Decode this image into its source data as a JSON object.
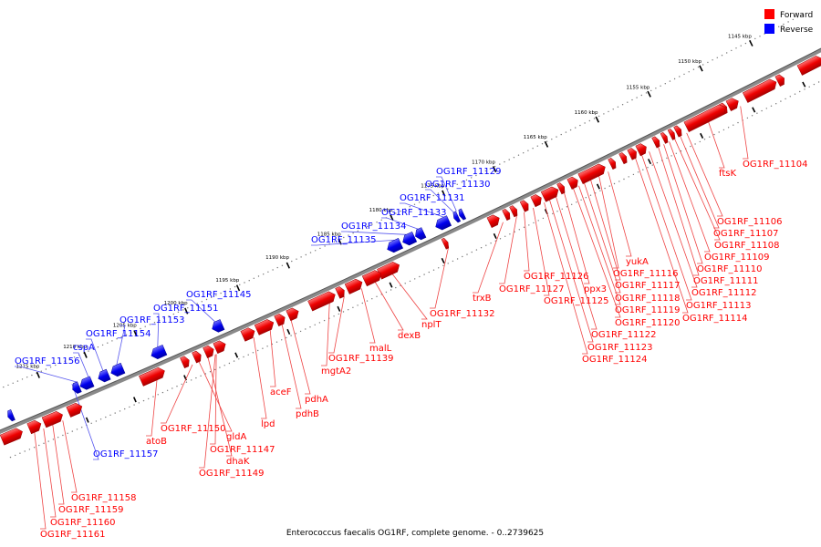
{
  "legend": [
    {
      "label": "Forward",
      "color": "#ff0000"
    },
    {
      "label": "Reverse",
      "color": "#0000ff"
    }
  ],
  "caption": "Enterococcus faecalis OG1RF, complete genome. - 0..2739625",
  "ticks": [
    "1145 kbp",
    "1150 kbp",
    "1155 kbp",
    "1160 kbp",
    "1165 kbp",
    "1170 kbp",
    "1175 kbp",
    "1180 kbp",
    "1185 kbp",
    "1190 kbp",
    "1195 kbp",
    "1200 kbp",
    "1205 kbp",
    "1210 kbp",
    "1215 kbp"
  ],
  "forward_labels": [
    "OG1RF_11104",
    "ftsK",
    "OG1RF_11106",
    "OG1RF_11107",
    "OG1RF_11108",
    "OG1RF_11109",
    "OG1RF_11110",
    "OG1RF_11111",
    "OG1RF_11112",
    "OG1RF_11113",
    "OG1RF_11114",
    "yukA",
    "OG1RF_11116",
    "OG1RF_11117",
    "OG1RF_11118",
    "OG1RF_11119",
    "OG1RF_11120",
    "ppx3",
    "OG1RF_11122",
    "OG1RF_11123",
    "OG1RF_11124",
    "OG1RF_11125",
    "OG1RF_11126",
    "OG1RF_11127",
    "trxB",
    "OG1RF_11132",
    "nplT",
    "dexB",
    "malL",
    "OG1RF_11139",
    "mgtA2",
    "pdhA",
    "pdhB",
    "aceF",
    "lpd",
    "OG1RF_11147",
    "dhaK",
    "gldA",
    "OG1RF_11149",
    "OG1RF_11150",
    "atoB",
    "OG1RF_11158",
    "OG1RF_11159",
    "OG1RF_11160",
    "OG1RF_11161"
  ],
  "reverse_labels": [
    "OG1RF_11129",
    "OG1RF_11130",
    "OG1RF_11131",
    "OG1RF_11133",
    "OG1RF_11134",
    "OG1RF_11135",
    "OG1RF_11145",
    "OG1RF_11151",
    "OG1RF_11153",
    "OG1RF_11154",
    "cspA",
    "OG1RF_11156",
    "OG1RF_11157"
  ]
}
